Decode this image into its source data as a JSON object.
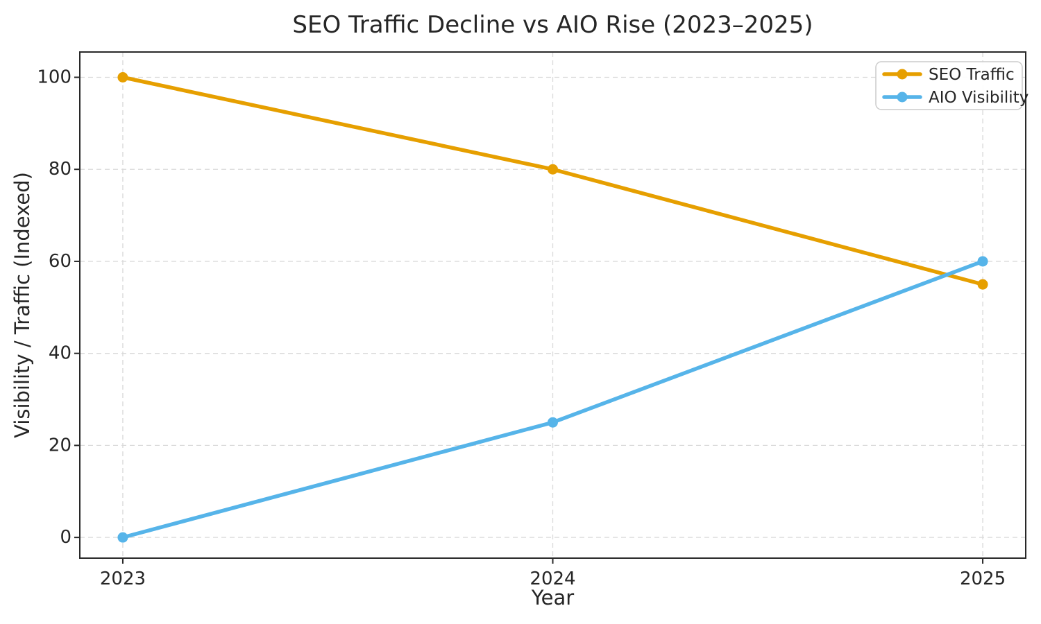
{
  "chart_data": {
    "type": "line",
    "title": "SEO Traffic Decline vs AIO Rise (2023–2025)",
    "xlabel": "Year",
    "ylabel": "Visibility / Traffic (Indexed)",
    "categories": [
      "2023",
      "2024",
      "2025"
    ],
    "series": [
      {
        "name": "SEO Traffic",
        "color": "#E69F00",
        "values": [
          100,
          80,
          55
        ]
      },
      {
        "name": "AIO Visibility",
        "color": "#56B4E9",
        "values": [
          0,
          25,
          60
        ]
      }
    ],
    "y_ticks": [
      0,
      20,
      40,
      60,
      80,
      100
    ],
    "ylim": [
      -4.5,
      105.5
    ],
    "x_margin": 0.1,
    "grid": true,
    "grid_style": "dashed",
    "legend_position": "top-right",
    "line_width": 5.5,
    "marker": "circle"
  }
}
